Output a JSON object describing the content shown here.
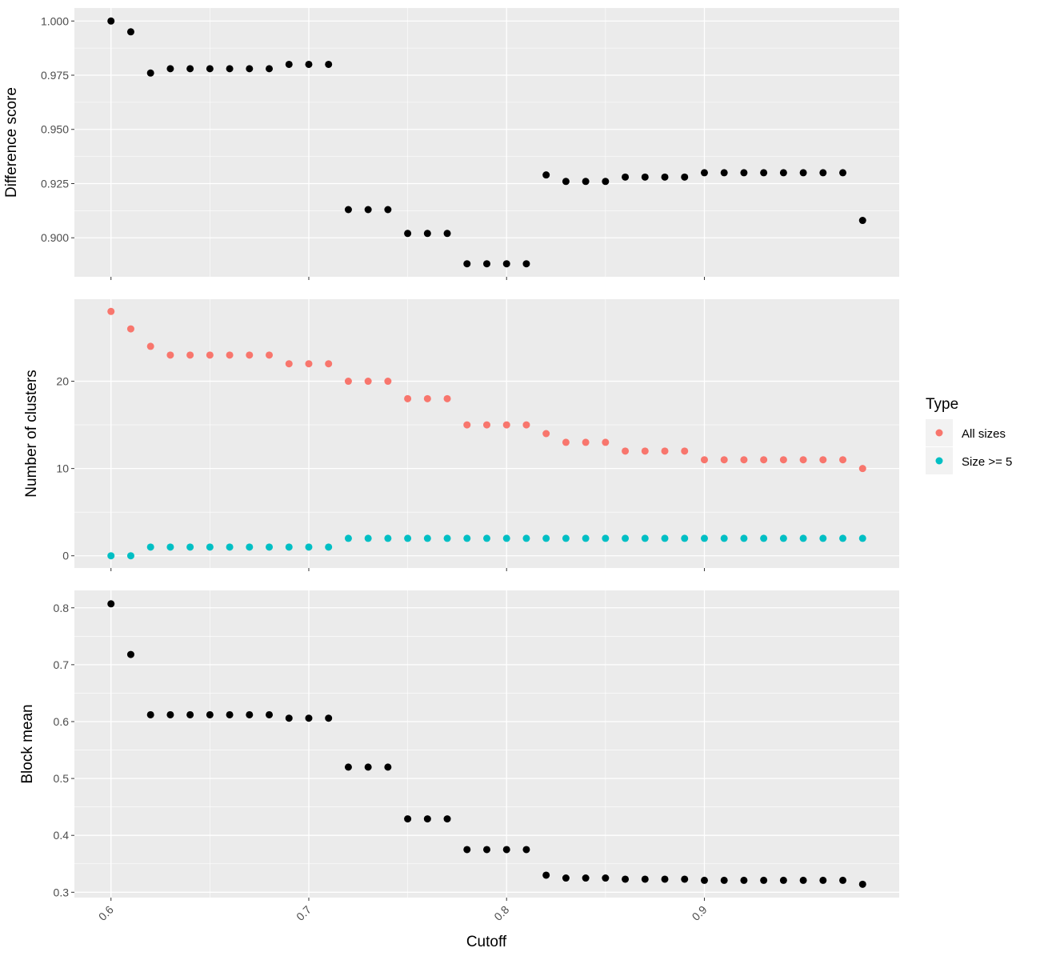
{
  "chart_data": [
    {
      "type": "scatter",
      "ylabel": "Difference score",
      "ylim": [
        0.882,
        1.006
      ],
      "yticks": [
        0.9,
        0.925,
        0.95,
        0.975,
        1.0
      ],
      "ytick_labels": [
        "0.900",
        "0.925",
        "0.950",
        "0.975",
        "1.000"
      ],
      "grid": true,
      "series": [
        {
          "color": "#000000",
          "x": [
            0.6,
            0.61,
            0.62,
            0.63,
            0.64,
            0.65,
            0.66,
            0.67,
            0.68,
            0.69,
            0.7,
            0.71,
            0.72,
            0.73,
            0.74,
            0.75,
            0.76,
            0.77,
            0.78,
            0.79,
            0.8,
            0.81,
            0.82,
            0.83,
            0.84,
            0.85,
            0.86,
            0.87,
            0.88,
            0.89,
            0.9,
            0.91,
            0.92,
            0.93,
            0.94,
            0.95,
            0.96,
            0.97,
            0.98
          ],
          "y": [
            1.0,
            0.995,
            0.976,
            0.978,
            0.978,
            0.978,
            0.978,
            0.978,
            0.978,
            0.98,
            0.98,
            0.98,
            0.913,
            0.913,
            0.913,
            0.902,
            0.902,
            0.902,
            0.888,
            0.888,
            0.888,
            0.888,
            0.929,
            0.926,
            0.926,
            0.926,
            0.928,
            0.928,
            0.928,
            0.928,
            0.93,
            0.93,
            0.93,
            0.93,
            0.93,
            0.93,
            0.93,
            0.93,
            0.908
          ]
        }
      ]
    },
    {
      "type": "scatter",
      "ylabel": "Number of clusters",
      "ylim": [
        -1.4,
        29.4
      ],
      "yticks": [
        0,
        10,
        20
      ],
      "ytick_labels": [
        "0",
        "10",
        "20"
      ],
      "grid": true,
      "series": [
        {
          "name": "All sizes",
          "color": "#F8766D",
          "x": [
            0.6,
            0.61,
            0.62,
            0.63,
            0.64,
            0.65,
            0.66,
            0.67,
            0.68,
            0.69,
            0.7,
            0.71,
            0.72,
            0.73,
            0.74,
            0.75,
            0.76,
            0.77,
            0.78,
            0.79,
            0.8,
            0.81,
            0.82,
            0.83,
            0.84,
            0.85,
            0.86,
            0.87,
            0.88,
            0.89,
            0.9,
            0.91,
            0.92,
            0.93,
            0.94,
            0.95,
            0.96,
            0.97,
            0.98
          ],
          "y": [
            28,
            26,
            24,
            23,
            23,
            23,
            23,
            23,
            23,
            22,
            22,
            22,
            20,
            20,
            20,
            18,
            18,
            18,
            15,
            15,
            15,
            15,
            14,
            13,
            13,
            13,
            12,
            12,
            12,
            12,
            11,
            11,
            11,
            11,
            11,
            11,
            11,
            11,
            10
          ]
        },
        {
          "name": "Size >= 5",
          "color": "#00BFC4",
          "x": [
            0.6,
            0.61,
            0.62,
            0.63,
            0.64,
            0.65,
            0.66,
            0.67,
            0.68,
            0.69,
            0.7,
            0.71,
            0.72,
            0.73,
            0.74,
            0.75,
            0.76,
            0.77,
            0.78,
            0.79,
            0.8,
            0.81,
            0.82,
            0.83,
            0.84,
            0.85,
            0.86,
            0.87,
            0.88,
            0.89,
            0.9,
            0.91,
            0.92,
            0.93,
            0.94,
            0.95,
            0.96,
            0.97,
            0.98
          ],
          "y": [
            0,
            0,
            1,
            1,
            1,
            1,
            1,
            1,
            1,
            1,
            1,
            1,
            2,
            2,
            2,
            2,
            2,
            2,
            2,
            2,
            2,
            2,
            2,
            2,
            2,
            2,
            2,
            2,
            2,
            2,
            2,
            2,
            2,
            2,
            2,
            2,
            2,
            2,
            2
          ]
        }
      ]
    },
    {
      "type": "scatter",
      "ylabel": "Block mean",
      "xlabel": "Cutoff",
      "ylim": [
        0.2906,
        0.8306
      ],
      "yticks": [
        0.3,
        0.4,
        0.5,
        0.6,
        0.7,
        0.8
      ],
      "ytick_labels": [
        "0.3",
        "0.4",
        "0.5",
        "0.6",
        "0.7",
        "0.8"
      ],
      "grid": true,
      "series": [
        {
          "color": "#000000",
          "x": [
            0.6,
            0.61,
            0.62,
            0.63,
            0.64,
            0.65,
            0.66,
            0.67,
            0.68,
            0.69,
            0.7,
            0.71,
            0.72,
            0.73,
            0.74,
            0.75,
            0.76,
            0.77,
            0.78,
            0.79,
            0.8,
            0.81,
            0.82,
            0.83,
            0.84,
            0.85,
            0.86,
            0.87,
            0.88,
            0.89,
            0.9,
            0.91,
            0.92,
            0.93,
            0.94,
            0.95,
            0.96,
            0.97,
            0.98
          ],
          "y": [
            0.807,
            0.718,
            0.612,
            0.612,
            0.612,
            0.612,
            0.612,
            0.612,
            0.612,
            0.606,
            0.606,
            0.606,
            0.52,
            0.52,
            0.52,
            0.429,
            0.429,
            0.429,
            0.375,
            0.375,
            0.375,
            0.375,
            0.33,
            0.325,
            0.325,
            0.325,
            0.323,
            0.323,
            0.323,
            0.323,
            0.321,
            0.321,
            0.321,
            0.321,
            0.321,
            0.321,
            0.321,
            0.321,
            0.314
          ]
        }
      ]
    }
  ],
  "x_axis": {
    "label": "Cutoff",
    "xlim": [
      0.5815,
      0.9985
    ],
    "ticks": [
      0.6,
      0.7,
      0.8,
      0.9
    ],
    "tick_labels": [
      "0.6",
      "0.7",
      "0.8",
      "0.9"
    ]
  },
  "legend": {
    "title": "Type",
    "position": "right",
    "items": [
      {
        "label": "All sizes",
        "color": "#F8766D"
      },
      {
        "label": "Size >= 5",
        "color": "#00BFC4"
      }
    ]
  },
  "colors": {
    "panel_background": "#EBEBEB",
    "grid": "#FFFFFF",
    "tick": "#333333"
  }
}
